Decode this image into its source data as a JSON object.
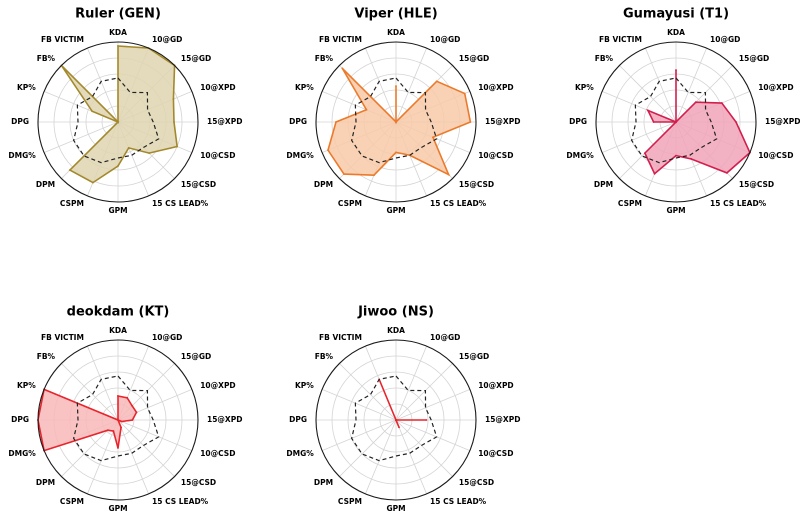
{
  "chart_data": {
    "type": "radar",
    "axes": [
      "KDA",
      "10@GD",
      "15@GD",
      "10@XPD",
      "15@XPD",
      "10@CSD",
      "15@CSD",
      "15 CS LEAD%",
      "GPM",
      "CSPM",
      "DPM",
      "DMG%",
      "DPG",
      "KP%",
      "FB%",
      "FB VICTIM"
    ],
    "rlim": [
      0,
      1
    ],
    "grid": true,
    "baseline": [
      0.55,
      0.4,
      0.52,
      0.4,
      0.44,
      0.55,
      0.45,
      0.45,
      0.45,
      0.55,
      0.6,
      0.6,
      0.5,
      0.55,
      0.45,
      0.55
    ],
    "panels": [
      {
        "title": "Ruler (GEN)",
        "color": "#a3892b",
        "fill": "#ded5b0",
        "values": [
          0.95,
          1.0,
          1.0,
          0.75,
          0.7,
          0.8,
          0.55,
          0.35,
          0.55,
          0.82,
          0.85,
          0.0,
          0.0,
          0.35,
          1.0,
          0.0
        ]
      },
      {
        "title": "Viper (HLE)",
        "color": "#ec7a2a",
        "fill": "#f8c9a8",
        "values": [
          0.45,
          0.0,
          0.72,
          0.93,
          0.93,
          0.5,
          0.93,
          0.45,
          0.38,
          0.72,
          0.92,
          0.92,
          0.75,
          0.4,
          0.95,
          0.0
        ]
      },
      {
        "title": "Gumayusi (T1)",
        "color": "#d21f4e",
        "fill": "#f1a5b9",
        "values": [
          0.65,
          0.0,
          0.35,
          0.62,
          0.75,
          1.0,
          0.9,
          0.5,
          0.42,
          0.7,
          0.55,
          0.0,
          0.28,
          0.38,
          0.0,
          0.0
        ]
      },
      {
        "title": "deokdam (KT)",
        "color": "#e8242c",
        "fill": "#f9b8b8",
        "values": [
          0.3,
          0.3,
          0.25,
          0.25,
          0.18,
          0.05,
          0.0,
          0.1,
          0.35,
          0.15,
          0.18,
          1.0,
          1.0,
          1.0,
          0.0,
          0.0
        ]
      },
      {
        "title": "Jiwoo (NS)",
        "color": "#e8242c",
        "fill": "none",
        "values": [
          0.0,
          0.0,
          0.0,
          0.0,
          0.38,
          0.0,
          0.0,
          0.1,
          0.0,
          0.0,
          0.0,
          0.0,
          0.0,
          0.0,
          0.0,
          0.55
        ]
      }
    ]
  }
}
